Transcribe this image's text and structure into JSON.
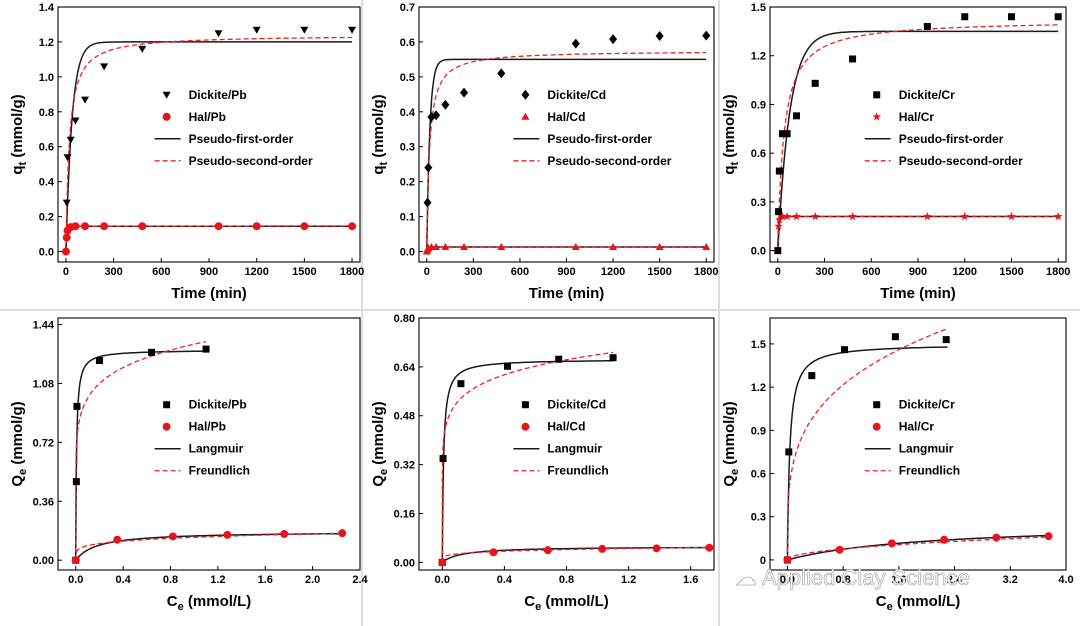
{
  "watermark": {
    "text": "Applied Clay Science"
  },
  "colors": {
    "series_black": "#000000",
    "series_red": "#e8141b",
    "fit_first": "#1a1a1a",
    "fit_second": "#ee2222"
  },
  "chart_data": [
    {
      "type": "scatter",
      "id": "kin-pb",
      "xlabel": "Time (min)",
      "ylabel": "q",
      "ylabel_sub": "t",
      "ylabel_unit": "(mmol/g)",
      "xlim": [
        -50,
        1850
      ],
      "ylim": [
        -0.06,
        1.4
      ],
      "xticks": [
        0,
        300,
        600,
        900,
        1200,
        1500,
        1800
      ],
      "xtick_labels": [
        "0",
        "300",
        "600",
        "900",
        "1200",
        "1500",
        "1800"
      ],
      "yticks": [
        0.0,
        0.2,
        0.4,
        0.6,
        0.8,
        1.0,
        1.2,
        1.4
      ],
      "ytick_labels": [
        "0.0",
        "0.2",
        "0.4",
        "0.6",
        "0.8",
        "1.0",
        "1.2",
        "1.4"
      ],
      "series": [
        {
          "name": "Dickite/Pb",
          "marker": "triangle-down",
          "color": "#000000",
          "x": [
            5,
            10,
            30,
            60,
            120,
            240,
            480,
            960,
            1200,
            1500,
            1800
          ],
          "y": [
            0.28,
            0.54,
            0.64,
            0.75,
            0.87,
            1.06,
            1.16,
            1.25,
            1.27,
            1.27,
            1.27
          ]
        },
        {
          "name": "Hal/Pb",
          "marker": "circle",
          "color": "#e8141b",
          "x": [
            0,
            5,
            10,
            30,
            60,
            120,
            240,
            480,
            960,
            1200,
            1500,
            1800
          ],
          "y": [
            0.0,
            0.08,
            0.12,
            0.14,
            0.145,
            0.145,
            0.145,
            0.145,
            0.145,
            0.145,
            0.145,
            0.145
          ]
        }
      ],
      "fits": [
        {
          "name": "Pseudo-first-order",
          "style": "solid",
          "kind": "pfo",
          "qe": 1.2,
          "k": 0.026
        },
        {
          "name": "Pseudo-second-order",
          "style": "dashed",
          "kind": "pso",
          "qe": 1.24,
          "k": 0.038
        },
        {
          "style": "solid",
          "kind": "pfo",
          "qe": 0.145,
          "k": 0.2,
          "legend": false
        },
        {
          "style": "dashed",
          "kind": "pso",
          "qe": 0.146,
          "k": 5.0,
          "legend": false
        }
      ],
      "legend": {
        "position": "center-right"
      }
    },
    {
      "type": "scatter",
      "id": "kin-cd",
      "xlabel": "Time (min)",
      "ylabel": "q",
      "ylabel_sub": "t",
      "ylabel_unit": "(mmol/g)",
      "xlim": [
        -50,
        1850
      ],
      "ylim": [
        -0.03,
        0.7
      ],
      "xticks": [
        0,
        300,
        600,
        900,
        1200,
        1500,
        1800
      ],
      "xtick_labels": [
        "0",
        "300",
        "600",
        "900",
        "1200",
        "1500",
        "1800"
      ],
      "yticks": [
        0.0,
        0.1,
        0.2,
        0.3,
        0.4,
        0.5,
        0.6,
        0.7
      ],
      "ytick_labels": [
        "0.0",
        "0.1",
        "0.2",
        "0.3",
        "0.4",
        "0.5",
        "0.6",
        "0.7"
      ],
      "series": [
        {
          "name": "Dickite/Cd",
          "marker": "diamond",
          "color": "#000000",
          "x": [
            5,
            10,
            30,
            60,
            120,
            240,
            480,
            960,
            1200,
            1500,
            1800
          ],
          "y": [
            0.14,
            0.24,
            0.385,
            0.39,
            0.42,
            0.455,
            0.51,
            0.595,
            0.608,
            0.617,
            0.618
          ]
        },
        {
          "name": "Hal/Cd",
          "marker": "triangle-up",
          "color": "#e8141b",
          "x": [
            0,
            5,
            10,
            30,
            60,
            120,
            240,
            480,
            960,
            1200,
            1500,
            1800
          ],
          "y": [
            0.0,
            0.005,
            0.01,
            0.013,
            0.013,
            0.013,
            0.013,
            0.013,
            0.013,
            0.013,
            0.013,
            0.013
          ]
        }
      ],
      "fits": [
        {
          "name": "Pseudo-first-order",
          "style": "solid",
          "kind": "pfo",
          "qe": 0.55,
          "k": 0.05
        },
        {
          "name": "Pseudo-second-order",
          "style": "dashed",
          "kind": "pso",
          "qe": 0.575,
          "k": 0.1
        },
        {
          "style": "solid",
          "kind": "pfo",
          "qe": 0.013,
          "k": 0.2,
          "legend": false
        },
        {
          "style": "dashed",
          "kind": "pso",
          "qe": 0.013,
          "k": 40.0,
          "legend": false
        }
      ],
      "legend": {
        "position": "center-right"
      }
    },
    {
      "type": "scatter",
      "id": "kin-cr",
      "xlabel": "Time (min)",
      "ylabel": "q",
      "ylabel_sub": "t",
      "ylabel_unit": "(mmol/g)",
      "xlim": [
        -50,
        1850
      ],
      "ylim": [
        -0.07,
        1.5
      ],
      "xticks": [
        0,
        300,
        600,
        900,
        1200,
        1500,
        1800
      ],
      "xtick_labels": [
        "0",
        "300",
        "600",
        "900",
        "1200",
        "1500",
        "1800"
      ],
      "yticks": [
        0.0,
        0.3,
        0.6,
        0.9,
        1.2,
        1.5
      ],
      "ytick_labels": [
        "0.0",
        "0.3",
        "0.6",
        "0.9",
        "1.2",
        "1.5"
      ],
      "series": [
        {
          "name": "Dickite/Cr",
          "marker": "square",
          "color": "#000000",
          "x": [
            0,
            5,
            10,
            30,
            60,
            120,
            240,
            480,
            960,
            1200,
            1500,
            1800
          ],
          "y": [
            0.0,
            0.24,
            0.49,
            0.72,
            0.72,
            0.83,
            1.03,
            1.18,
            1.38,
            1.44,
            1.44,
            1.44
          ]
        },
        {
          "name": "Hal/Cr",
          "marker": "star",
          "color": "#e8141b",
          "x": [
            5,
            10,
            30,
            60,
            120,
            240,
            480,
            960,
            1200,
            1500,
            1800
          ],
          "y": [
            0.15,
            0.19,
            0.21,
            0.21,
            0.21,
            0.21,
            0.21,
            0.21,
            0.21,
            0.21,
            0.21
          ]
        }
      ],
      "fits": [
        {
          "name": "Pseudo-first-order",
          "style": "solid",
          "kind": "pfo",
          "qe": 1.35,
          "k": 0.013
        },
        {
          "name": "Pseudo-second-order",
          "style": "dashed",
          "kind": "pso",
          "qe": 1.42,
          "k": 0.018
        },
        {
          "style": "solid",
          "kind": "pfo",
          "qe": 0.21,
          "k": 0.15,
          "legend": false
        },
        {
          "style": "dashed",
          "kind": "pso",
          "qe": 0.212,
          "k": 3.0,
          "legend": false
        }
      ],
      "legend": {
        "position": "center-right"
      }
    },
    {
      "type": "scatter",
      "id": "iso-pb",
      "xlabel": "C",
      "xlabel_sub": "e",
      "xlabel_unit": "(mmol/L)",
      "ylabel": "Q",
      "ylabel_sub": "e",
      "ylabel_unit": "(mmol/g)",
      "xlim": [
        -0.15,
        2.4
      ],
      "ylim": [
        -0.06,
        1.48
      ],
      "xticks": [
        0.0,
        0.4,
        0.8,
        1.2,
        1.6,
        2.0,
        2.4
      ],
      "xtick_labels": [
        "0.0",
        "0.4",
        "0.8",
        "1.2",
        "1.6",
        "2.0",
        "2.4"
      ],
      "yticks": [
        0.0,
        0.36,
        0.72,
        1.08,
        1.44
      ],
      "ytick_labels": [
        "0.00",
        "0.36",
        "0.72",
        "1.08",
        "1.44"
      ],
      "series": [
        {
          "name": "Dickite/Pb",
          "marker": "square",
          "color": "#000000",
          "x": [
            0.0,
            0.005,
            0.01,
            0.2,
            0.64,
            1.1
          ],
          "y": [
            0.0,
            0.48,
            0.94,
            1.22,
            1.27,
            1.29
          ]
        },
        {
          "name": "Hal/Pb",
          "marker": "circle",
          "color": "#e8141b",
          "x": [
            0.0,
            0.35,
            0.82,
            1.28,
            1.76,
            2.25
          ],
          "y": [
            0.0,
            0.125,
            0.145,
            0.155,
            0.16,
            0.165
          ]
        }
      ],
      "fits": [
        {
          "name": "Langmuir",
          "style": "solid",
          "kind": "langmuir",
          "qm": 1.285,
          "KL": 150,
          "xmax": 1.1
        },
        {
          "name": "Freundlich",
          "style": "dashed",
          "kind": "freundlich",
          "KF": 1.32,
          "n": 8,
          "xmax": 1.1
        },
        {
          "style": "solid",
          "kind": "langmuir",
          "qm": 0.175,
          "KL": 5.5,
          "xmax": 2.25,
          "legend": false
        },
        {
          "style": "dashed",
          "kind": "freundlich",
          "KF": 0.14,
          "n": 5,
          "xmax": 2.25,
          "legend": false
        }
      ],
      "legend": {
        "position": "center-right"
      }
    },
    {
      "type": "scatter",
      "id": "iso-cd",
      "xlabel": "C",
      "xlabel_sub": "e",
      "xlabel_unit": "(mmol/L)",
      "ylabel": "Q",
      "ylabel_sub": "e",
      "ylabel_unit": "(mmol/g)",
      "xlim": [
        -0.15,
        1.75
      ],
      "ylim": [
        -0.025,
        0.8
      ],
      "xticks": [
        0.0,
        0.4,
        0.8,
        1.2,
        1.6
      ],
      "xtick_labels": [
        "0.0",
        "0.4",
        "0.8",
        "1.2",
        "1.6"
      ],
      "yticks": [
        0.0,
        0.16,
        0.32,
        0.48,
        0.64,
        0.8
      ],
      "ytick_labels": [
        "0.00",
        "0.16",
        "0.32",
        "0.48",
        "0.64",
        "0.80"
      ],
      "series": [
        {
          "name": "Dickite/Cd",
          "marker": "square",
          "color": "#000000",
          "x": [
            0.0,
            0.005,
            0.12,
            0.42,
            0.75,
            1.1
          ],
          "y": [
            0.0,
            0.34,
            0.585,
            0.642,
            0.665,
            0.67
          ]
        },
        {
          "name": "Hal/Cd",
          "marker": "circle",
          "color": "#e8141b",
          "x": [
            0.0,
            0.33,
            0.68,
            1.03,
            1.38,
            1.72
          ],
          "y": [
            0.0,
            0.033,
            0.04,
            0.044,
            0.046,
            0.048
          ]
        }
      ],
      "fits": [
        {
          "name": "Langmuir",
          "style": "solid",
          "kind": "langmuir",
          "qm": 0.665,
          "KL": 120,
          "xmax": 1.1
        },
        {
          "name": "Freundlich",
          "style": "dashed",
          "kind": "freundlich",
          "KF": 0.68,
          "n": 9,
          "xmax": 1.1
        },
        {
          "style": "solid",
          "kind": "langmuir",
          "qm": 0.052,
          "KL": 8,
          "xmax": 1.72,
          "legend": false
        },
        {
          "style": "dashed",
          "kind": "freundlich",
          "KF": 0.044,
          "n": 5,
          "xmax": 1.72,
          "legend": false
        }
      ],
      "legend": {
        "position": "center-right"
      }
    },
    {
      "type": "scatter",
      "id": "iso-cr",
      "xlabel": "C",
      "xlabel_sub": "e",
      "xlabel_unit": "(mmol/L)",
      "ylabel": "Q",
      "ylabel_sub": "e",
      "ylabel_unit": "(mmol/g)",
      "xlim": [
        -0.25,
        4.0
      ],
      "ylim": [
        -0.07,
        1.68
      ],
      "xticks": [
        0.0,
        0.8,
        1.6,
        2.4,
        3.2,
        4.0
      ],
      "xtick_labels": [
        "0.0",
        "0.8",
        "1.6",
        "2.4",
        "3.2",
        "4.0"
      ],
      "yticks": [
        0.0,
        0.3,
        0.6,
        0.9,
        1.2,
        1.5
      ],
      "ytick_labels": [
        "0",
        "0.3",
        "0.6",
        "0.9",
        "1.2",
        "1.5"
      ],
      "series": [
        {
          "name": "Dickite/Cr",
          "marker": "square",
          "color": "#000000",
          "x": [
            0.0,
            0.02,
            0.35,
            0.82,
            1.55,
            2.28
          ],
          "y": [
            0.0,
            0.75,
            1.28,
            1.46,
            1.55,
            1.53
          ]
        },
        {
          "name": "Hal/Cr",
          "marker": "circle",
          "color": "#e8141b",
          "x": [
            0.0,
            0.75,
            1.5,
            2.25,
            3.0,
            3.75
          ],
          "y": [
            0.0,
            0.07,
            0.115,
            0.14,
            0.155,
            0.165
          ]
        }
      ],
      "fits": [
        {
          "name": "Langmuir",
          "style": "solid",
          "kind": "langmuir",
          "qm": 1.5,
          "KL": 30,
          "xmax": 2.3
        },
        {
          "name": "Freundlich",
          "style": "dashed",
          "kind": "freundlich",
          "KF": 1.29,
          "n": 3.8,
          "xmax": 2.3
        },
        {
          "style": "solid",
          "kind": "langmuir",
          "qm": 0.26,
          "KL": 0.5,
          "xmax": 3.75,
          "legend": false
        },
        {
          "style": "dashed",
          "kind": "freundlich",
          "KF": 0.085,
          "n": 2.1,
          "xmax": 3.75,
          "legend": false
        }
      ],
      "legend": {
        "position": "center-right"
      }
    }
  ]
}
